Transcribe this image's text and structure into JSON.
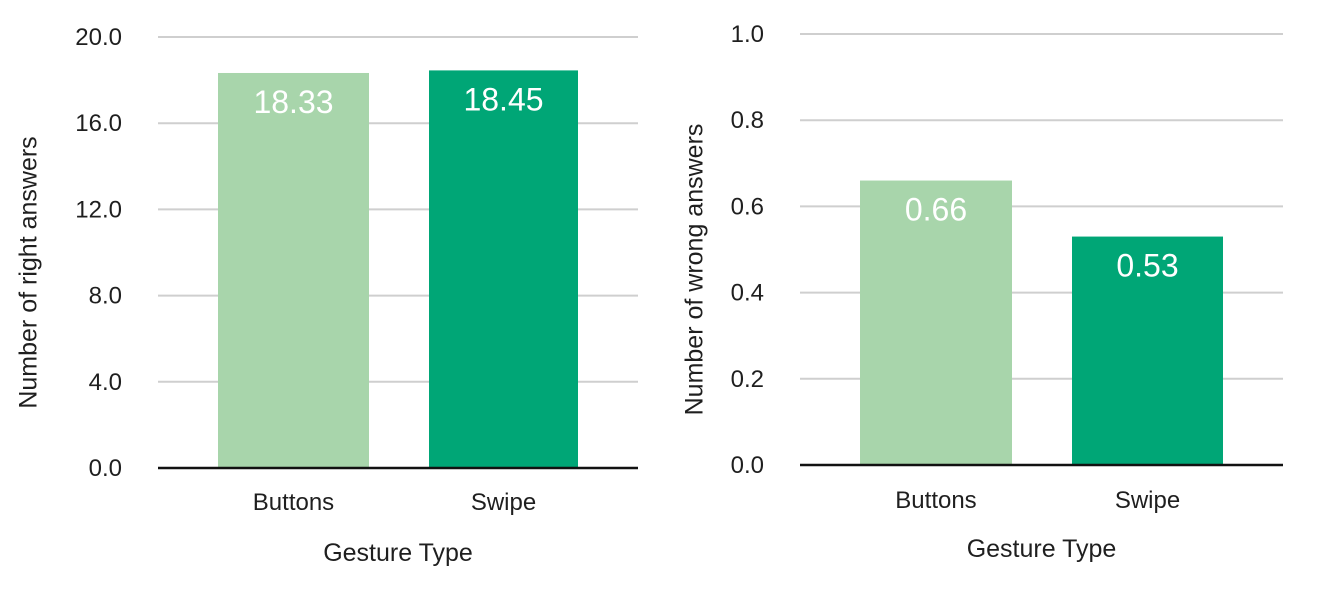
{
  "chart_data": [
    {
      "type": "bar",
      "categories": [
        "Buttons",
        "Swipe"
      ],
      "values": [
        18.33,
        18.45
      ],
      "data_labels": [
        "18.33",
        "18.45"
      ],
      "colors": [
        "#a8d5ab",
        "#00a676"
      ],
      "title": "",
      "xlabel": "Gesture Type",
      "ylabel": "Number of right answers",
      "ylim": [
        0,
        20
      ],
      "yticks": [
        0,
        4,
        8,
        12,
        16,
        20
      ],
      "ytick_labels": [
        "0.0",
        "4.0",
        "8.0",
        "12.0",
        "16.0",
        "20.0"
      ],
      "grid": true,
      "grid_color": "#cfcfcf",
      "legend": "none"
    },
    {
      "type": "bar",
      "categories": [
        "Buttons",
        "Swipe"
      ],
      "values": [
        0.66,
        0.53
      ],
      "data_labels": [
        "0.66",
        "0.53"
      ],
      "colors": [
        "#a8d5ab",
        "#00a676"
      ],
      "title": "",
      "xlabel": "Gesture Type",
      "ylabel": "Number of wrong answers",
      "ylim": [
        0,
        1
      ],
      "yticks": [
        0,
        0.2,
        0.4,
        0.6,
        0.8,
        1.0
      ],
      "ytick_labels": [
        "0.0",
        "0.2",
        "0.4",
        "0.6",
        "0.8",
        "1.0"
      ],
      "grid": true,
      "grid_color": "#cfcfcf",
      "legend": "none"
    }
  ]
}
